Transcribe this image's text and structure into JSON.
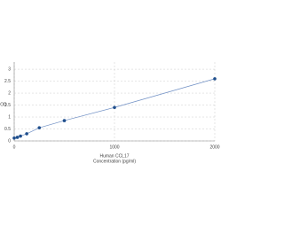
{
  "chart_data": {
    "type": "scatter-line",
    "xlabel": "Human CCL17",
    "xlabel2": "Concentration (pg/ml)",
    "ylabel": "OD",
    "x": [
      0,
      31.25,
      62.5,
      125,
      250,
      500,
      1000,
      2000
    ],
    "series": [
      {
        "color": "#1f4e8c",
        "line_color": "#6f8fc4",
        "values": [
          0.12,
          0.15,
          0.2,
          0.3,
          0.55,
          0.85,
          1.4,
          2.6
        ]
      }
    ],
    "xlim": [
      0,
      2000
    ],
    "ylim": [
      0,
      3.3
    ],
    "xticks": [
      0,
      1000,
      2000
    ],
    "yticks": [
      0,
      0.5,
      1,
      1.5,
      2,
      2.5,
      3
    ],
    "grid": true
  }
}
